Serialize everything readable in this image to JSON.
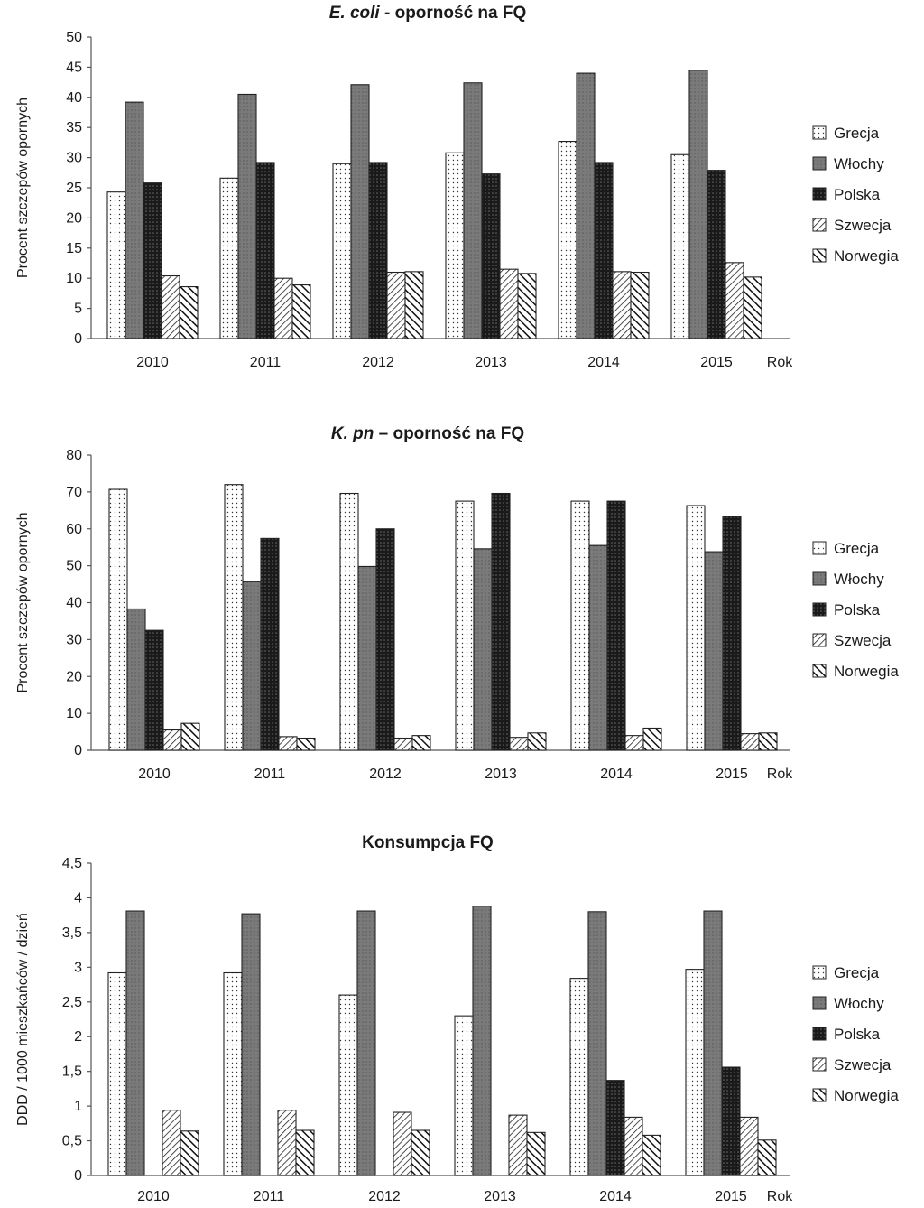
{
  "chart_data": [
    {
      "type": "bar",
      "title_italic": "E. coli",
      "title_rest": " - oporność na FQ",
      "ylabel": "Procent szczepów opornych",
      "xlabel": "Rok",
      "ylim": [
        0,
        50
      ],
      "yticks": [
        0,
        5,
        10,
        15,
        20,
        25,
        30,
        35,
        40,
        45,
        50
      ],
      "yticklabels": [
        "0",
        "5",
        "10",
        "15",
        "20",
        "25",
        "30",
        "35",
        "40",
        "45",
        "50"
      ],
      "categories": [
        "2010",
        "2011",
        "2012",
        "2013",
        "2014",
        "2015"
      ],
      "series": [
        {
          "name": "Grecja",
          "values": [
            24.3,
            26.6,
            29.0,
            30.8,
            32.7,
            30.5
          ]
        },
        {
          "name": "Włochy",
          "values": [
            39.2,
            40.5,
            42.1,
            42.4,
            44.0,
            44.5
          ]
        },
        {
          "name": "Polska",
          "values": [
            25.8,
            29.2,
            29.2,
            27.3,
            29.2,
            27.9
          ]
        },
        {
          "name": "Szwecja",
          "values": [
            10.4,
            10.0,
            11.0,
            11.5,
            11.1,
            12.6
          ]
        },
        {
          "name": "Norwegia",
          "values": [
            8.6,
            8.9,
            11.1,
            10.8,
            11.0,
            10.2
          ]
        }
      ],
      "legend_position": "right"
    },
    {
      "type": "bar",
      "title_italic": "K. pn",
      "title_rest": " – oporność na FQ",
      "ylabel": "Procent szczepów opornych",
      "xlabel": "Rok",
      "ylim": [
        0,
        80
      ],
      "yticks": [
        0,
        10,
        20,
        30,
        40,
        50,
        60,
        70,
        80
      ],
      "yticklabels": [
        "0",
        "10",
        "20",
        "30",
        "40",
        "50",
        "60",
        "70",
        "80"
      ],
      "categories": [
        "2010",
        "2011",
        "2012",
        "2013",
        "2014",
        "2015"
      ],
      "series": [
        {
          "name": "Grecja",
          "values": [
            70.7,
            72.0,
            69.6,
            67.5,
            67.5,
            66.3
          ]
        },
        {
          "name": "Włochy",
          "values": [
            38.3,
            45.7,
            49.8,
            54.6,
            55.5,
            53.8
          ]
        },
        {
          "name": "Polska",
          "values": [
            32.5,
            57.4,
            60.0,
            69.6,
            67.5,
            63.3
          ]
        },
        {
          "name": "Szwecja",
          "values": [
            5.5,
            3.7,
            3.3,
            3.5,
            4.0,
            4.5
          ]
        },
        {
          "name": "Norwegia",
          "values": [
            7.3,
            3.3,
            4.0,
            4.7,
            6.0,
            4.7
          ]
        }
      ],
      "legend_position": "right"
    },
    {
      "type": "bar",
      "title_italic": "",
      "title_rest": "Konsumpcja FQ",
      "ylabel": "DDD / 1000 mieszkańców / dzień",
      "xlabel": "Rok",
      "ylim": [
        0,
        4.5
      ],
      "yticks": [
        0,
        0.5,
        1,
        1.5,
        2,
        2.5,
        3,
        3.5,
        4,
        4.5
      ],
      "yticklabels": [
        "0",
        "0,5",
        "1",
        "1,5",
        "2",
        "2,5",
        "3",
        "3,5",
        "4",
        "4,5"
      ],
      "categories": [
        "2010",
        "2011",
        "2012",
        "2013",
        "2014",
        "2015"
      ],
      "series": [
        {
          "name": "Grecja",
          "values": [
            2.92,
            2.92,
            2.6,
            2.3,
            2.84,
            2.97
          ]
        },
        {
          "name": "Włochy",
          "values": [
            3.81,
            3.77,
            3.81,
            3.88,
            3.8,
            3.81
          ]
        },
        {
          "name": "Polska",
          "values": [
            null,
            null,
            null,
            null,
            1.37,
            1.56
          ]
        },
        {
          "name": "Szwecja",
          "values": [
            0.94,
            0.94,
            0.91,
            0.87,
            0.84,
            0.84
          ]
        },
        {
          "name": "Norwegia",
          "values": [
            0.64,
            0.65,
            0.65,
            0.62,
            0.58,
            0.51
          ]
        }
      ],
      "legend_position": "right"
    }
  ]
}
